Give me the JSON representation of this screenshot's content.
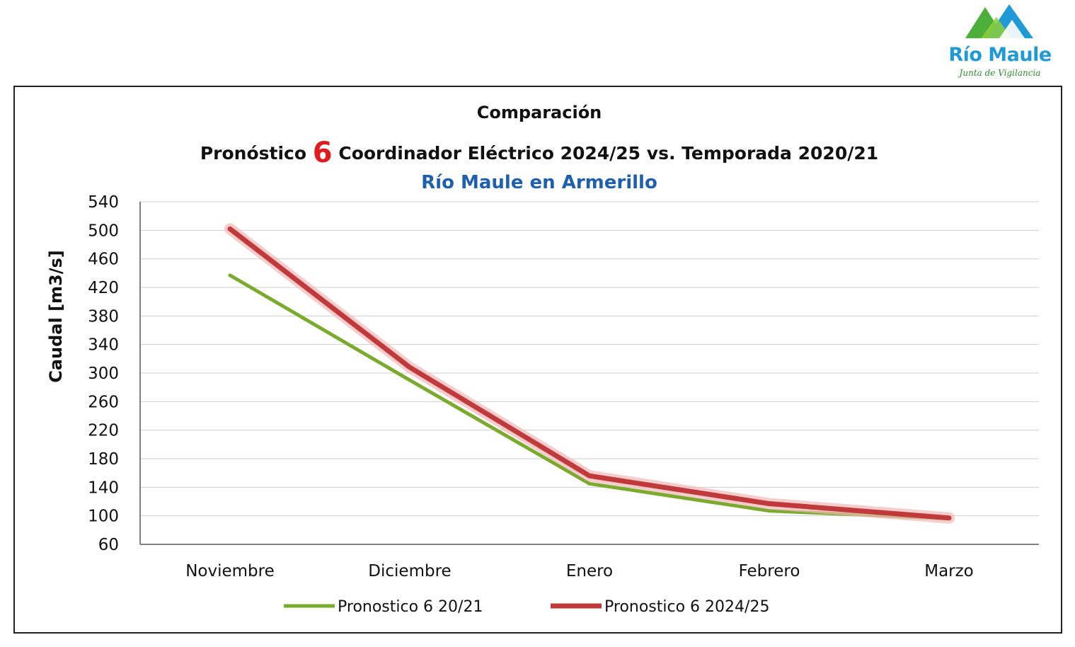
{
  "logo": {
    "name": "Río Maule",
    "subtitle": "Junta de Vigilancia",
    "colors": {
      "blue": "#1f9ad6",
      "green": "#4caf3a"
    }
  },
  "chart_data": {
    "type": "line",
    "title_line1": "Comparación",
    "title_line2_pre": "Pronóstico",
    "title_line2_num": "6",
    "title_line2_post": "Coordinador Eléctrico 2024/25 vs. Temporada 2020/21",
    "subtitle": "Río Maule en Armerillo",
    "xlabel": "",
    "ylabel": "Caudal [m3/s]",
    "ylim": [
      60,
      540
    ],
    "yticks": [
      60,
      100,
      140,
      180,
      220,
      260,
      300,
      340,
      380,
      420,
      460,
      500,
      540
    ],
    "categories": [
      "Noviembre",
      "Diciembre",
      "Enero",
      "Febrero",
      "Marzo"
    ],
    "grid": true,
    "legend_position": "bottom",
    "series": [
      {
        "name": "Pronostico 6 20/21",
        "values": [
          437,
          290,
          145,
          107,
          96
        ],
        "color": "#7aab2e"
      },
      {
        "name": "Pronostico 6 2024/25",
        "values": [
          502,
          308,
          156,
          117,
          97
        ],
        "color": "#c0393b"
      }
    ]
  }
}
